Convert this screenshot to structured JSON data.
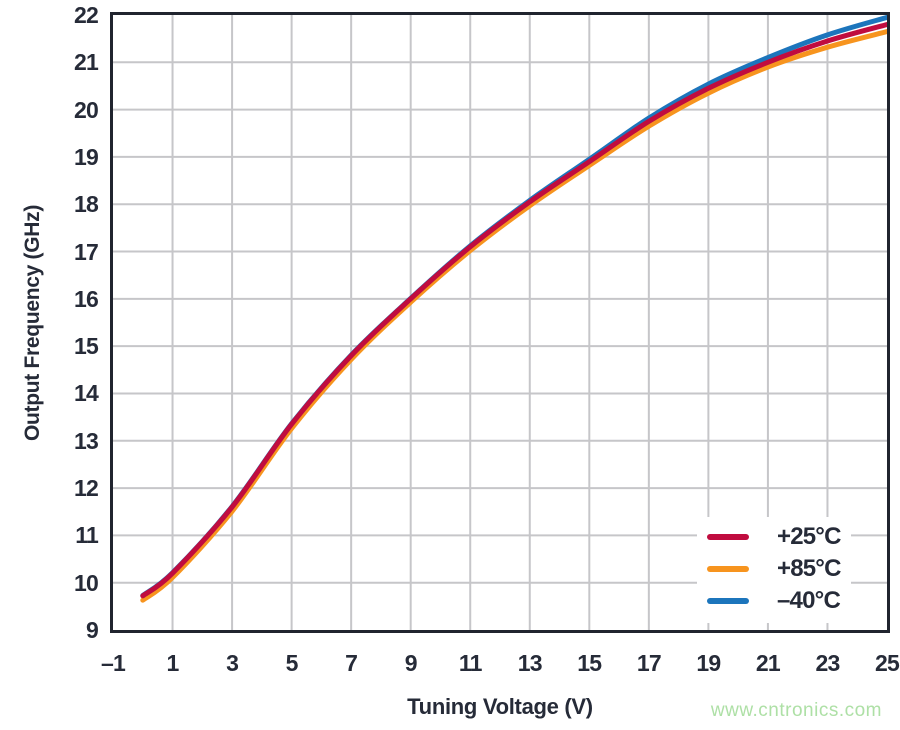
{
  "watermark": "www.cntronics.com",
  "chart_data": {
    "type": "line",
    "title": "",
    "xlabel": "Tuning Voltage (V)",
    "ylabel": "Output Frequency (GHz)",
    "xlim": [
      -1,
      25
    ],
    "ylim": [
      9,
      22
    ],
    "xticks": [
      -1,
      1,
      3,
      5,
      7,
      9,
      11,
      13,
      15,
      17,
      19,
      21,
      23,
      25
    ],
    "xtick_labels": [
      "–1",
      "1",
      "3",
      "5",
      "7",
      "9",
      "11",
      "13",
      "15",
      "17",
      "19",
      "21",
      "23",
      "25"
    ],
    "yticks": [
      22,
      21,
      20,
      19,
      18,
      17,
      16,
      15,
      14,
      13,
      12,
      11,
      10,
      9
    ],
    "grid": true,
    "legend_position": "inside-right-bottom",
    "colors": {
      "grid": "#C6C6C9",
      "frame": "#20242E",
      "text": "#262B38",
      "watermark": "#AEE0A6"
    },
    "x": [
      0,
      1,
      3,
      5,
      7,
      9,
      11,
      13,
      15,
      17,
      19,
      21,
      23,
      25
    ],
    "series": [
      {
        "name": "+25°C",
        "color": "#C00C3F",
        "values": [
          9.72,
          10.2,
          11.6,
          13.35,
          14.8,
          16.0,
          17.1,
          18.05,
          18.9,
          19.75,
          20.45,
          21.0,
          21.45,
          21.8
        ]
      },
      {
        "name": "+85°C",
        "color": "#F7941E",
        "values": [
          9.63,
          10.11,
          11.51,
          13.26,
          14.72,
          15.93,
          17.02,
          17.97,
          18.82,
          19.65,
          20.35,
          20.9,
          21.32,
          21.65
        ]
      },
      {
        "name": "–40°C",
        "color": "#1C75BC",
        "values": [
          9.73,
          10.21,
          11.61,
          13.36,
          14.81,
          16.01,
          17.12,
          18.08,
          18.95,
          19.82,
          20.54,
          21.1,
          21.58,
          21.95
        ]
      }
    ]
  }
}
